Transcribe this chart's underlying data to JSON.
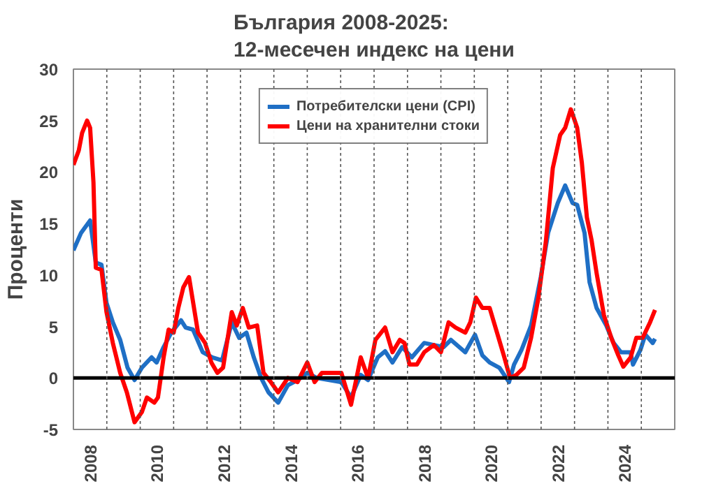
{
  "chart_data": {
    "type": "line",
    "title": "България 2008-2025:\n12-месечен индекс на цени",
    "ylabel": "Проценти",
    "xlim": [
      2008,
      2026
    ],
    "ylim": [
      -5,
      30
    ],
    "yticks": [
      -5,
      0,
      5,
      10,
      15,
      20,
      25,
      30
    ],
    "xticks": [
      {
        "value": 2008.5,
        "label": "2008"
      },
      {
        "value": 2010.5,
        "label": "2010"
      },
      {
        "value": 2012.5,
        "label": "2012"
      },
      {
        "value": 2014.5,
        "label": "2014"
      },
      {
        "value": 2016.5,
        "label": "2016"
      },
      {
        "value": 2018.5,
        "label": "2018"
      },
      {
        "value": 2020.5,
        "label": "2020"
      },
      {
        "value": 2022.5,
        "label": "2022"
      },
      {
        "value": 2024.5,
        "label": "2024"
      }
    ],
    "grid": false,
    "legend": "top",
    "marker": "none",
    "line_style": "solid",
    "ref_lines": [
      {
        "axis": "y",
        "value": 0,
        "color": "#000000",
        "line_style": "solid"
      },
      {
        "axis": "x",
        "value": 2009,
        "color": "#555555",
        "line_style": "dashed"
      },
      {
        "axis": "x",
        "value": 2010,
        "color": "#555555",
        "line_style": "dashed"
      },
      {
        "axis": "x",
        "value": 2011,
        "color": "#555555",
        "line_style": "dashed"
      },
      {
        "axis": "x",
        "value": 2012,
        "color": "#555555",
        "line_style": "dashed"
      },
      {
        "axis": "x",
        "value": 2013,
        "color": "#555555",
        "line_style": "dashed"
      },
      {
        "axis": "x",
        "value": 2014,
        "color": "#555555",
        "line_style": "dashed"
      },
      {
        "axis": "x",
        "value": 2015,
        "color": "#555555",
        "line_style": "dashed"
      },
      {
        "axis": "x",
        "value": 2016,
        "color": "#555555",
        "line_style": "dashed"
      },
      {
        "axis": "x",
        "value": 2017,
        "color": "#555555",
        "line_style": "dashed"
      },
      {
        "axis": "x",
        "value": 2018,
        "color": "#555555",
        "line_style": "dashed"
      },
      {
        "axis": "x",
        "value": 2019,
        "color": "#555555",
        "line_style": "dashed"
      },
      {
        "axis": "x",
        "value": 2020,
        "color": "#555555",
        "line_style": "dashed"
      },
      {
        "axis": "x",
        "value": 2021,
        "color": "#555555",
        "line_style": "dashed"
      },
      {
        "axis": "x",
        "value": 2022,
        "color": "#555555",
        "line_style": "dashed"
      },
      {
        "axis": "x",
        "value": 2023,
        "color": "#555555",
        "line_style": "dashed"
      },
      {
        "axis": "x",
        "value": 2024,
        "color": "#555555",
        "line_style": "dashed"
      },
      {
        "axis": "x",
        "value": 2025,
        "color": "#555555",
        "line_style": "dashed"
      }
    ],
    "series": [
      {
        "name": "Потребителски цени (CPI)",
        "color": "#1f6fc5",
        "x": [
          2008.0,
          2008.23,
          2008.5,
          2008.67,
          2008.84,
          2008.99,
          2009.18,
          2009.4,
          2009.62,
          2009.83,
          2010.05,
          2010.34,
          2010.49,
          2010.7,
          2010.93,
          2011.22,
          2011.36,
          2011.58,
          2011.87,
          2012.16,
          2012.45,
          2012.74,
          2012.96,
          2013.18,
          2013.4,
          2013.62,
          2013.84,
          2014.13,
          2014.42,
          2014.71,
          2015.0,
          2015.29,
          2015.66,
          2016.02,
          2016.31,
          2016.6,
          2016.82,
          2017.11,
          2017.33,
          2017.55,
          2017.84,
          2018.13,
          2018.5,
          2018.79,
          2019.08,
          2019.3,
          2019.73,
          2020.02,
          2020.24,
          2020.46,
          2020.75,
          2021.04,
          2021.19,
          2021.41,
          2021.7,
          2021.99,
          2022.21,
          2022.5,
          2022.72,
          2022.94,
          2023.08,
          2023.3,
          2023.45,
          2023.66,
          2023.95,
          2024.17,
          2024.39,
          2024.68,
          2024.75,
          2024.97,
          2025.12,
          2025.34,
          2025.41
        ],
        "values": [
          12.4,
          14.1,
          15.3,
          11.2,
          11.0,
          7.3,
          5.4,
          3.7,
          1.0,
          -0.2,
          1.0,
          2.0,
          1.5,
          3.0,
          4.4,
          5.6,
          4.9,
          4.7,
          2.5,
          2.0,
          1.7,
          5.4,
          3.9,
          4.4,
          2.0,
          0.0,
          -1.4,
          -2.4,
          -0.7,
          -0.2,
          0.5,
          0.0,
          -0.2,
          -0.4,
          -1.9,
          0.3,
          -0.2,
          2.0,
          2.6,
          1.5,
          3.0,
          2.0,
          3.4,
          3.2,
          3.0,
          3.7,
          2.5,
          4.2,
          2.2,
          1.5,
          1.0,
          -0.4,
          1.3,
          2.7,
          5.1,
          9.8,
          14.1,
          17.0,
          18.7,
          17.0,
          16.8,
          14.1,
          9.3,
          6.8,
          5.1,
          3.4,
          2.5,
          2.5,
          1.3,
          2.7,
          4.2,
          3.4,
          3.8
        ]
      },
      {
        "name": "Цени на хранителни стоки",
        "color": "#ff0000",
        "x": [
          2008.0,
          2008.16,
          2008.26,
          2008.41,
          2008.5,
          2008.6,
          2008.67,
          2008.84,
          2008.99,
          2009.18,
          2009.4,
          2009.6,
          2009.83,
          2010.05,
          2010.2,
          2010.42,
          2010.53,
          2010.7,
          2010.85,
          2011.0,
          2011.14,
          2011.29,
          2011.46,
          2011.73,
          2011.94,
          2012.13,
          2012.31,
          2012.48,
          2012.74,
          2012.89,
          2013.07,
          2013.25,
          2013.5,
          2013.69,
          2013.91,
          2014.13,
          2014.42,
          2014.71,
          2015.0,
          2015.22,
          2015.44,
          2015.73,
          2016.02,
          2016.31,
          2016.6,
          2016.82,
          2017.04,
          2017.33,
          2017.55,
          2017.77,
          2017.91,
          2018.06,
          2018.28,
          2018.5,
          2018.79,
          2019.0,
          2019.23,
          2019.44,
          2019.73,
          2019.88,
          2020.05,
          2020.24,
          2020.46,
          2020.68,
          2020.9,
          2021.07,
          2021.26,
          2021.48,
          2021.7,
          2021.92,
          2022.14,
          2022.35,
          2022.57,
          2022.72,
          2022.89,
          2023.08,
          2023.22,
          2023.37,
          2023.51,
          2023.66,
          2023.88,
          2024.1,
          2024.31,
          2024.46,
          2024.68,
          2024.85,
          2025.04,
          2025.26,
          2025.41
        ],
        "values": [
          20.7,
          22.1,
          23.8,
          25.0,
          24.3,
          19.0,
          10.7,
          10.5,
          6.4,
          3.4,
          0.5,
          -1.4,
          -4.3,
          -3.3,
          -1.9,
          -2.4,
          -1.9,
          2.0,
          4.7,
          4.4,
          6.8,
          8.8,
          9.8,
          4.4,
          3.4,
          1.5,
          0.5,
          1.0,
          6.4,
          5.1,
          6.8,
          4.9,
          5.1,
          0.5,
          -0.4,
          -1.4,
          0.0,
          -0.4,
          1.5,
          -0.4,
          0.5,
          0.5,
          0.5,
          -2.6,
          2.0,
          0.0,
          3.7,
          4.9,
          2.5,
          3.7,
          3.4,
          1.3,
          1.3,
          2.5,
          3.2,
          2.5,
          5.4,
          4.9,
          4.4,
          5.4,
          7.8,
          6.8,
          6.8,
          4.4,
          2.0,
          0.0,
          0.3,
          1.0,
          3.9,
          7.8,
          13.2,
          20.4,
          23.6,
          24.3,
          26.1,
          24.3,
          20.9,
          15.6,
          13.4,
          10.2,
          6.1,
          3.9,
          2.2,
          1.1,
          2.0,
          3.9,
          3.9,
          5.4,
          6.6
        ]
      }
    ]
  }
}
